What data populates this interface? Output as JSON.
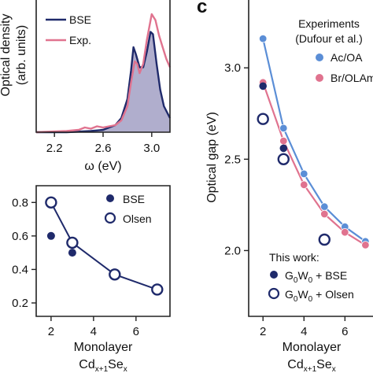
{
  "panel_label_c": "c",
  "chart_data": [
    {
      "type": "area",
      "xlabel": "ω (eV)",
      "ylabel_lines": [
        "Optical density",
        "(arb. units)"
      ],
      "xlim": [
        2.05,
        3.15
      ],
      "ylim": [
        0,
        1.0
      ],
      "xticks": [
        "2.2",
        "2.6",
        "3.0"
      ],
      "xtick_values": [
        2.2,
        2.6,
        3.0
      ],
      "legend_placement": "top-left",
      "series": [
        {
          "name": "BSE",
          "color": "#1f2a6b",
          "filled": true,
          "fill_color": "#a7a5c8",
          "x": [
            2.05,
            2.3,
            2.5,
            2.6,
            2.7,
            2.75,
            2.8,
            2.83,
            2.85,
            2.87,
            2.9,
            2.93,
            2.96,
            2.99,
            3.01,
            3.04,
            3.07,
            3.1,
            3.15
          ],
          "y": [
            0.0,
            0.0,
            0.01,
            0.02,
            0.06,
            0.12,
            0.28,
            0.52,
            0.72,
            0.66,
            0.55,
            0.55,
            0.68,
            0.85,
            0.83,
            0.58,
            0.36,
            0.22,
            0.12
          ]
        },
        {
          "name": "Exp.",
          "color": "#e0738f",
          "filled": false,
          "x": [
            2.05,
            2.3,
            2.4,
            2.45,
            2.5,
            2.55,
            2.6,
            2.65,
            2.7,
            2.75,
            2.8,
            2.83,
            2.86,
            2.88,
            2.9,
            2.93,
            2.96,
            3.0,
            3.03,
            3.06,
            3.09,
            3.12,
            3.15
          ],
          "y": [
            0.0,
            0.01,
            0.02,
            0.04,
            0.03,
            0.05,
            0.04,
            0.05,
            0.06,
            0.1,
            0.22,
            0.42,
            0.6,
            0.58,
            0.5,
            0.58,
            0.78,
            1.0,
            0.95,
            0.82,
            0.72,
            0.62,
            0.55
          ]
        }
      ]
    },
    {
      "type": "scatter",
      "xlabel_lines": [
        "Monolayer",
        "Cd",
        "x+1",
        "Se",
        "x"
      ],
      "xlim": [
        1.3,
        7.6
      ],
      "ylim": [
        0.12,
        0.9
      ],
      "xticks": [
        "2",
        "4",
        "6"
      ],
      "xtick_values": [
        2,
        4,
        6
      ],
      "yticks": [
        "0.2",
        "0.4",
        "0.6",
        "0.8"
      ],
      "ytick_values": [
        0.2,
        0.4,
        0.6,
        0.8
      ],
      "legend_placement": "top-right",
      "series": [
        {
          "name": "BSE",
          "color": "#1f2a6b",
          "marker": "filled-circle",
          "x": [
            2,
            3
          ],
          "y": [
            0.6,
            0.5
          ]
        },
        {
          "name": "Olsen",
          "color": "#1f2a6b",
          "marker": "open-circle",
          "line": true,
          "x": [
            2,
            3,
            5,
            7
          ],
          "y": [
            0.8,
            0.56,
            0.37,
            0.28
          ]
        }
      ]
    },
    {
      "type": "scatter",
      "xlabel_lines": [
        "Monolayer",
        "Cd",
        "x+1",
        "Se",
        "x"
      ],
      "ylabel": "Optical gap (eV)",
      "xlim": [
        1.3,
        7.6
      ],
      "ylim": [
        1.64,
        3.38
      ],
      "xticks": [
        "2",
        "4",
        "6"
      ],
      "xtick_values": [
        2,
        4,
        6
      ],
      "yticks": [
        "2.0",
        "2.5",
        "3.0"
      ],
      "ytick_values": [
        2.0,
        2.5,
        3.0
      ],
      "legend_title_lines": [
        "Experiments",
        "(Dufour et al.)"
      ],
      "work_legend_title": "This work:",
      "series": [
        {
          "name": "Ac/OA",
          "color": "#5b8ed6",
          "marker": "filled-circle",
          "line": true,
          "x": [
            2,
            3,
            4,
            5,
            6,
            7
          ],
          "y": [
            3.16,
            2.67,
            2.42,
            2.24,
            2.13,
            2.05
          ]
        },
        {
          "name": "Br/OLAm",
          "color": "#e0738f",
          "marker": "filled-circle",
          "line": true,
          "x": [
            2,
            3,
            4,
            5,
            6,
            7
          ],
          "y": [
            2.92,
            2.6,
            2.36,
            2.2,
            2.1,
            2.03
          ]
        },
        {
          "name_main": "G",
          "name_sub1": "0",
          "name_mid": "W",
          "name_sub2": "0",
          "name_tail": " + BSE",
          "color": "#1f2a6b",
          "marker": "filled-circle",
          "x": [
            2,
            3
          ],
          "y": [
            2.9,
            2.56
          ]
        },
        {
          "name_main": "G",
          "name_sub1": "0",
          "name_mid": "W",
          "name_sub2": "0",
          "name_tail": " + Olsen",
          "color": "#1f2a6b",
          "marker": "open-circle",
          "x": [
            2,
            3,
            5
          ],
          "y": [
            2.72,
            2.5,
            2.06
          ]
        }
      ]
    }
  ]
}
